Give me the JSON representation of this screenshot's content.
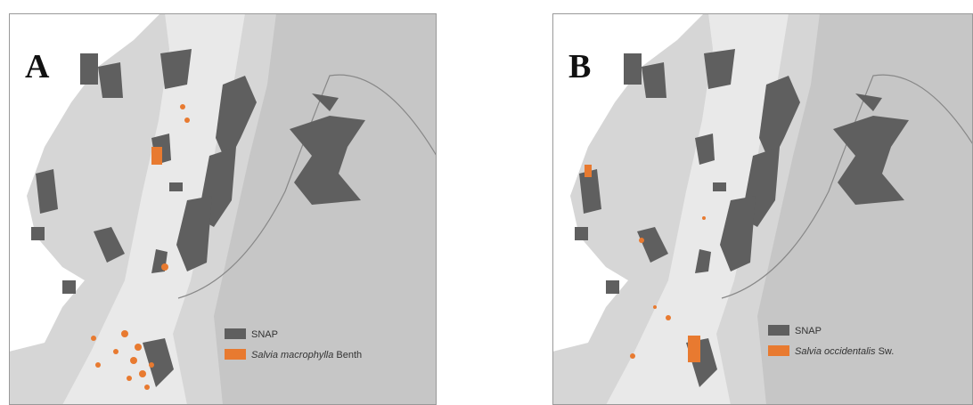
{
  "panels": [
    {
      "label": "A",
      "legend": {
        "snap": "SNAP",
        "species": "Salvia macrophylla",
        "author": "Benth"
      }
    },
    {
      "label": "B",
      "legend": {
        "snap": "SNAP",
        "species": "Salvia occidentalis",
        "author": "Sw."
      }
    }
  ]
}
